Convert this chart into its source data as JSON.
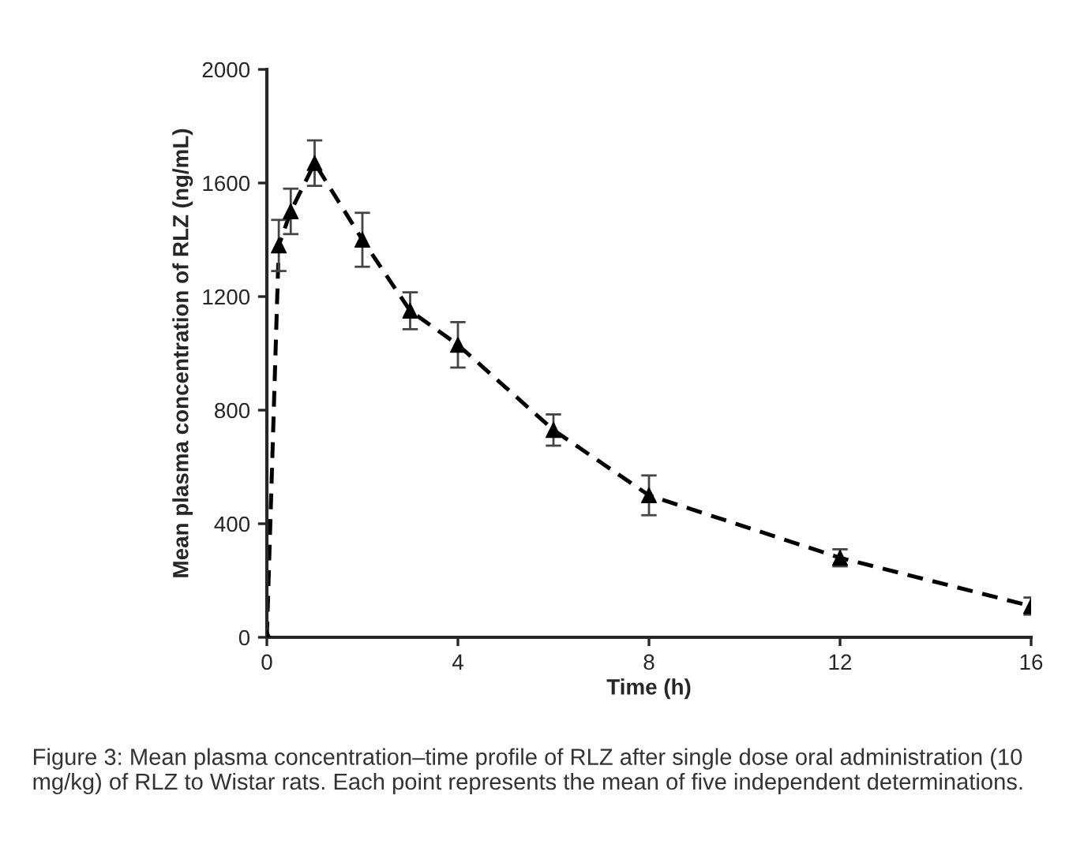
{
  "chart_data": {
    "type": "line",
    "xlabel": "Time (h)",
    "ylabel": "Mean plasma concentration of RLZ (ng/mL)",
    "x": [
      0,
      0.25,
      0.5,
      1,
      2,
      3,
      4,
      6,
      8,
      12,
      16
    ],
    "values": [
      0,
      1380,
      1500,
      1670,
      1400,
      1150,
      1030,
      730,
      500,
      280,
      110
    ],
    "errors": [
      null,
      90,
      80,
      80,
      95,
      65,
      80,
      55,
      70,
      30,
      30
    ],
    "color": "#000000",
    "marker": "triangle",
    "line_style": "dashed",
    "grid": false,
    "legend": false,
    "xlim": [
      0,
      16
    ],
    "xticks": [
      0,
      4,
      8,
      12,
      16
    ],
    "ylim": [
      0,
      2000
    ],
    "yticks": [
      0,
      400,
      800,
      1200,
      1600,
      2000
    ],
    "annotations": [
      "Figure 3: Mean plasma concentration–time profile of RLZ after single dose oral administration (10 mg/kg) of RLZ to Wistar rats. Each point represents the mean of five independent determinations."
    ]
  }
}
